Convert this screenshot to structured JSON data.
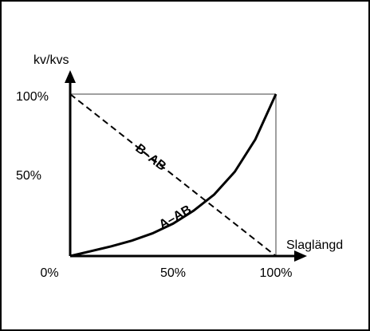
{
  "chart_data": {
    "type": "line",
    "title": "",
    "ylabel": "kv/kvs",
    "xlabel": "Slaglängd",
    "xlim": [
      0,
      100
    ],
    "ylim": [
      0,
      100
    ],
    "x_ticks": [
      "0%",
      "50%",
      "100%"
    ],
    "y_ticks": [
      "100%",
      "50%"
    ],
    "grid": false,
    "series": [
      {
        "name": "A–AB",
        "style": "solid",
        "x": [
          0,
          10,
          20,
          30,
          40,
          50,
          60,
          70,
          80,
          90,
          100
        ],
        "y": [
          0,
          3,
          6,
          9.5,
          14,
          20,
          28,
          38,
          52,
          72,
          100
        ]
      },
      {
        "name": "B–AB",
        "style": "dashed",
        "x": [
          0,
          100
        ],
        "y": [
          100,
          0
        ]
      }
    ],
    "colors": {
      "line": "#000000",
      "frame": "#808080",
      "border": "#000000"
    }
  }
}
